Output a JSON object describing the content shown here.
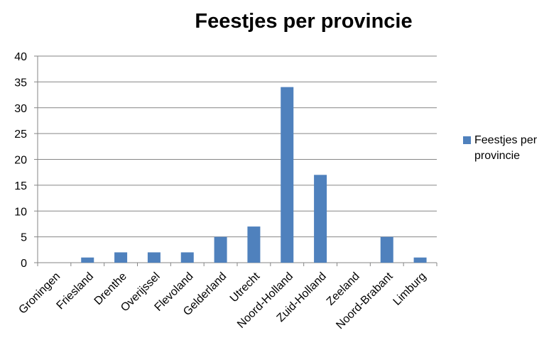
{
  "colors": {
    "bar": "#4F81BD",
    "grid": "#868686",
    "axis": "#868686"
  },
  "chart_data": {
    "type": "bar",
    "title": "Feestjes per provincie",
    "categories": [
      "Groningen",
      "Friesland",
      "Drenthe",
      "Overijssel",
      "Flevoland",
      "Gelderland",
      "Utrecht",
      "Noord-Holland",
      "Zuid-Holland",
      "Zeeland",
      "Noord-Brabant",
      "Limburg"
    ],
    "series": [
      {
        "name": "Feestjes per provincie",
        "values": [
          0,
          1,
          2,
          2,
          2,
          5,
          7,
          34,
          17,
          0,
          5,
          1
        ]
      }
    ],
    "ylim": [
      0,
      40
    ],
    "yticks": [
      0,
      5,
      10,
      15,
      20,
      25,
      30,
      35,
      40
    ],
    "grid": true,
    "legend_position": "right"
  }
}
